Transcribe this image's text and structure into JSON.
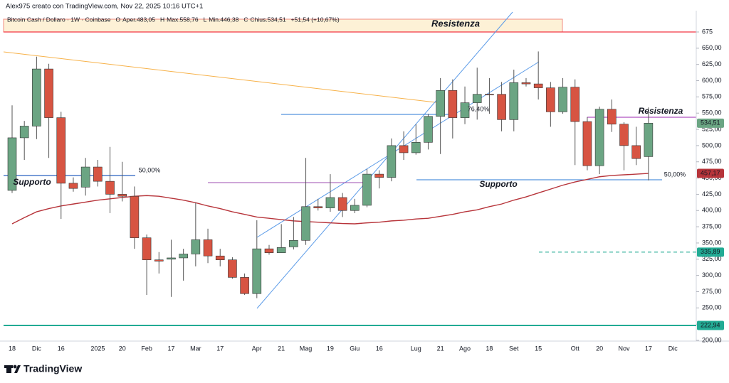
{
  "header": "Alex975 creato con TradingView.com, Nov 22, 2025 10:16 UTC+1",
  "legend": [
    "Bitcoin Cash / Dollaro · 1W · Coinbase",
    "O",
    "Aper.483,05",
    "H",
    "Max.558,76",
    "L",
    "Min.446,38",
    "C",
    "Chius.534,51",
    "+51,54 (+10,67%)"
  ],
  "logo": "TradingView",
  "chart_data": {
    "type": "candlestick",
    "categories": [
      "18",
      null,
      "Dic",
      null,
      "16",
      null,
      null,
      "2025",
      null,
      "20",
      null,
      "Feb",
      null,
      "17",
      null,
      "Mar",
      null,
      "17",
      null,
      null,
      "Apr",
      null,
      "21",
      null,
      "Mag",
      null,
      "19",
      null,
      "Giu",
      null,
      "16",
      null,
      null,
      "Lug",
      null,
      "21",
      null,
      "Ago",
      null,
      "18",
      null,
      "Set",
      null,
      "15",
      null,
      null,
      "Ott",
      null,
      "20",
      null,
      "Nov",
      null,
      "17",
      null,
      "Dic"
    ],
    "open": [
      431,
      512,
      530,
      618,
      543,
      442,
      436,
      467,
      445,
      425,
      422,
      358,
      324,
      325,
      327,
      333,
      355,
      330,
      324,
      297,
      272,
      341,
      335,
      344,
      354,
      406,
      404,
      420,
      400,
      408,
      456,
      451,
      500,
      489,
      505,
      545,
      585,
      543,
      566,
      579,
      579,
      540,
      597,
      595,
      589,
      552,
      590,
      537,
      469,
      556,
      533,
      500,
      483.05,
      null,
      null
    ],
    "high": [
      562,
      538,
      637,
      626,
      552,
      451,
      481,
      478,
      498,
      475,
      437,
      363,
      336,
      355,
      341,
      412,
      372,
      341,
      328,
      303,
      385,
      347,
      379,
      390,
      481,
      418,
      456,
      427,
      418,
      464,
      462,
      511,
      522,
      533,
      549,
      604,
      602,
      591,
      620,
      604,
      598,
      617,
      604,
      645,
      598,
      604,
      602,
      544,
      560,
      571,
      536,
      529,
      558.76,
      null,
      null
    ],
    "low": [
      427,
      478,
      510,
      481,
      387,
      429,
      423,
      437,
      396,
      414,
      341,
      270,
      303,
      267,
      292,
      314,
      319,
      314,
      295,
      270,
      265,
      332,
      335,
      340,
      347,
      400,
      398,
      390,
      396,
      405,
      434,
      445,
      478,
      486,
      494,
      487,
      511,
      533,
      540,
      549,
      522,
      522,
      591,
      571,
      529,
      549,
      470,
      462,
      456,
      521,
      462,
      470,
      446.38,
      null,
      null
    ],
    "close": [
      512,
      530,
      618,
      543,
      442,
      434,
      467,
      445,
      425,
      422,
      358,
      324,
      322,
      327,
      333,
      355,
      330,
      324,
      297,
      272,
      341,
      335,
      343,
      354,
      406,
      404,
      420,
      400,
      408,
      456,
      451,
      500,
      489,
      505,
      545,
      585,
      543,
      566,
      579,
      578,
      540,
      597,
      595,
      589,
      552,
      590,
      537,
      469,
      556,
      533,
      500,
      480,
      534.51,
      null,
      null
    ],
    "up_color": "#6ba583",
    "down_color": "#d75442",
    "ma": {
      "color": "#b7343a",
      "values": [
        379.5,
        389,
        398,
        403,
        407,
        410,
        413,
        416,
        418,
        420,
        422,
        423,
        422,
        419,
        416,
        412,
        407,
        403,
        398,
        394,
        390,
        388,
        386,
        384,
        383,
        382,
        381,
        380,
        379.5,
        381,
        382,
        384,
        385,
        387,
        388,
        391,
        394,
        398,
        401,
        406,
        410,
        416,
        421,
        427,
        433,
        439,
        444,
        448,
        452,
        454,
        455,
        456,
        457.17,
        null,
        null
      ]
    },
    "ylim": [
      198.9,
      704.55
    ],
    "yticks": [
      {
        "value": 200,
        "label": "200,00"
      },
      {
        "value": 225,
        "label": "225,00"
      },
      {
        "value": 250,
        "label": "250,00"
      },
      {
        "value": 275,
        "label": "275,00"
      },
      {
        "value": 300,
        "label": "300,00"
      },
      {
        "value": 325,
        "label": "325,00"
      },
      {
        "value": 350,
        "label": "350,00"
      },
      {
        "value": 375,
        "label": "375,00"
      },
      {
        "value": 400,
        "label": "400,00"
      },
      {
        "value": 425,
        "label": "425,00"
      },
      {
        "value": 450,
        "label": "450,00"
      },
      {
        "value": 475,
        "label": "475,00"
      },
      {
        "value": 500,
        "label": "500,00"
      },
      {
        "value": 525,
        "label": "525,00"
      },
      {
        "value": 550,
        "label": "550,00"
      },
      {
        "value": 575,
        "label": "575,00"
      },
      {
        "value": 600,
        "label": "600,00"
      },
      {
        "value": 625,
        "label": "625,00"
      },
      {
        "value": 650,
        "label": "650,00"
      },
      {
        "value": 675,
        "label": "675"
      }
    ],
    "grid": false,
    "price_labels": [
      {
        "value": 534.51,
        "label": "534,51",
        "color": "#6ba583"
      },
      {
        "value": 457.17,
        "label": "457,17",
        "color": "#b7343a"
      },
      {
        "value": 335.89,
        "label": "335,89",
        "color": "#22ab94",
        "line": "dashed"
      },
      {
        "value": 222.94,
        "label": "222,94",
        "color": "#22ab94",
        "line": "solid"
      }
    ],
    "annotations": [
      {
        "text": "Resistenza",
        "color": "#f23645"
      },
      {
        "text": "Supporto",
        "color": "#2962ff"
      },
      {
        "text": "50,00%",
        "color": "#2962ff"
      },
      {
        "text": "76,40%",
        "color": "#2962ff"
      },
      {
        "text": "Supporto",
        "color": "#2962ff"
      },
      {
        "text": "50,00%",
        "color": "#5b8fd9"
      },
      {
        "text": "Resistenza",
        "color": "#9c27b0"
      }
    ]
  }
}
